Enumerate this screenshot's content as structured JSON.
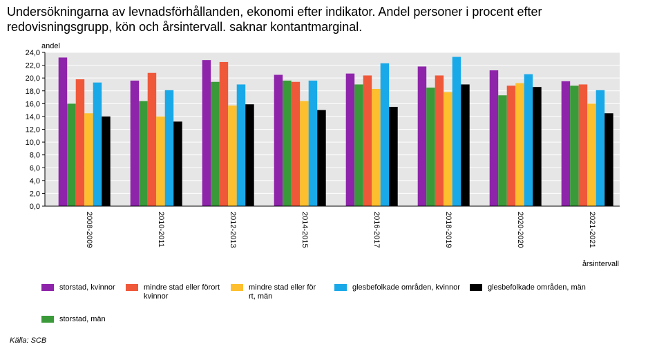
{
  "chart_data": {
    "type": "bar",
    "title": "Undersökningarna av levnadsförhållanden, ekonomi efter indikator. Andel personer i procent efter redovisningsgrupp, kön och årsintervall. saknar kontantmarginal.",
    "ylabel": "andel",
    "xlabel": "årsintervall",
    "ylim": [
      0,
      24
    ],
    "yticks": [
      "0,0",
      "2,0",
      "4,0",
      "6,0",
      "8,0",
      "10,0",
      "12,0",
      "14,0",
      "16,0",
      "18,0",
      "20,0",
      "22,0",
      "24,0"
    ],
    "grid": true,
    "categories": [
      "2008-2009",
      "2010-2011",
      "2012-2013",
      "2014-2015",
      "2016-2017",
      "2018-2019",
      "2020-2020",
      "2021-2021"
    ],
    "series": [
      {
        "name": "storstad, kvinnor",
        "color": "#8e24aa",
        "values": [
          23.2,
          19.6,
          22.8,
          20.5,
          20.7,
          21.8,
          21.2,
          19.5
        ]
      },
      {
        "name": "storstad, män",
        "color": "#3a9a3a",
        "values": [
          16.0,
          16.4,
          19.4,
          19.6,
          19.0,
          18.5,
          17.3,
          18.8
        ]
      },
      {
        "name": "mindre stad eller förort, kvinnor",
        "color": "#f0583a",
        "values": [
          19.8,
          20.8,
          22.5,
          19.4,
          20.4,
          20.4,
          18.8,
          19.0
        ]
      },
      {
        "name": "mindre stad eller förort, män",
        "color": "#fdbf2d",
        "values": [
          14.5,
          14.0,
          15.7,
          16.4,
          18.3,
          17.8,
          19.2,
          16.0
        ]
      },
      {
        "name": "glesbefolkade områden, kvinnor",
        "color": "#1aa9e8",
        "values": [
          19.3,
          18.1,
          19.0,
          19.6,
          22.3,
          23.3,
          20.6,
          18.1
        ]
      },
      {
        "name": "glesbefolkade områden, män",
        "color": "#000000",
        "values": [
          14.0,
          13.2,
          15.9,
          15.0,
          15.5,
          19.0,
          18.6,
          14.5
        ]
      }
    ],
    "legend": [
      {
        "label": "storstad, kvinnor",
        "color": "#8e24aa"
      },
      {
        "label": "mindre stad eller förort, kvinnor",
        "color": "#f0583a"
      },
      {
        "label": "mindre stad eller förort, män",
        "color": "#fdbf2d"
      },
      {
        "label": "glesbefolkade områden, kvinnor",
        "color": "#1aa9e8"
      },
      {
        "label": "glesbefolkade områden, män",
        "color": "#000000"
      },
      {
        "label": "storstad, män",
        "color": "#3a9a3a"
      }
    ]
  },
  "source": "Källa: SCB"
}
